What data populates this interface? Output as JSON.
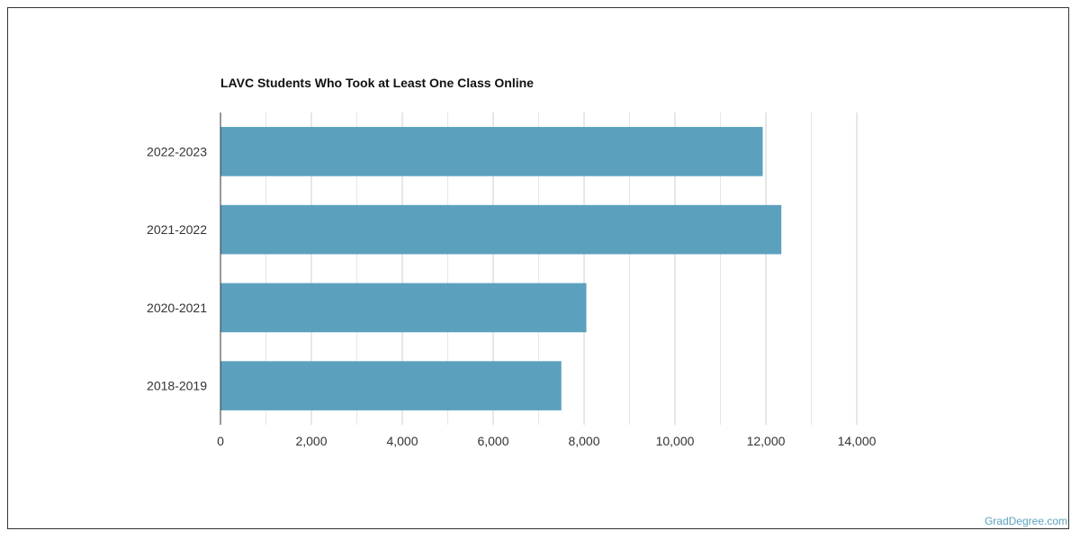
{
  "chart_data": {
    "type": "bar",
    "orientation": "horizontal",
    "title": "LAVC Students Who Took at Least One Class Online",
    "categories": [
      "2022-2023",
      "2021-2022",
      "2020-2021",
      "2018-2019"
    ],
    "values": [
      11930,
      12340,
      8050,
      7500
    ],
    "xlim": [
      0,
      14000
    ],
    "xticks": [
      0,
      2000,
      4000,
      6000,
      8000,
      10000,
      12000,
      14000
    ],
    "xtick_labels": [
      "0",
      "2,000",
      "4,000",
      "6,000",
      "8,000",
      "10,000",
      "12,000",
      "14,000"
    ],
    "xlabel": "",
    "ylabel": "",
    "grid": true,
    "bar_color": "#5ba1be"
  },
  "watermark": "GradDegree.com"
}
